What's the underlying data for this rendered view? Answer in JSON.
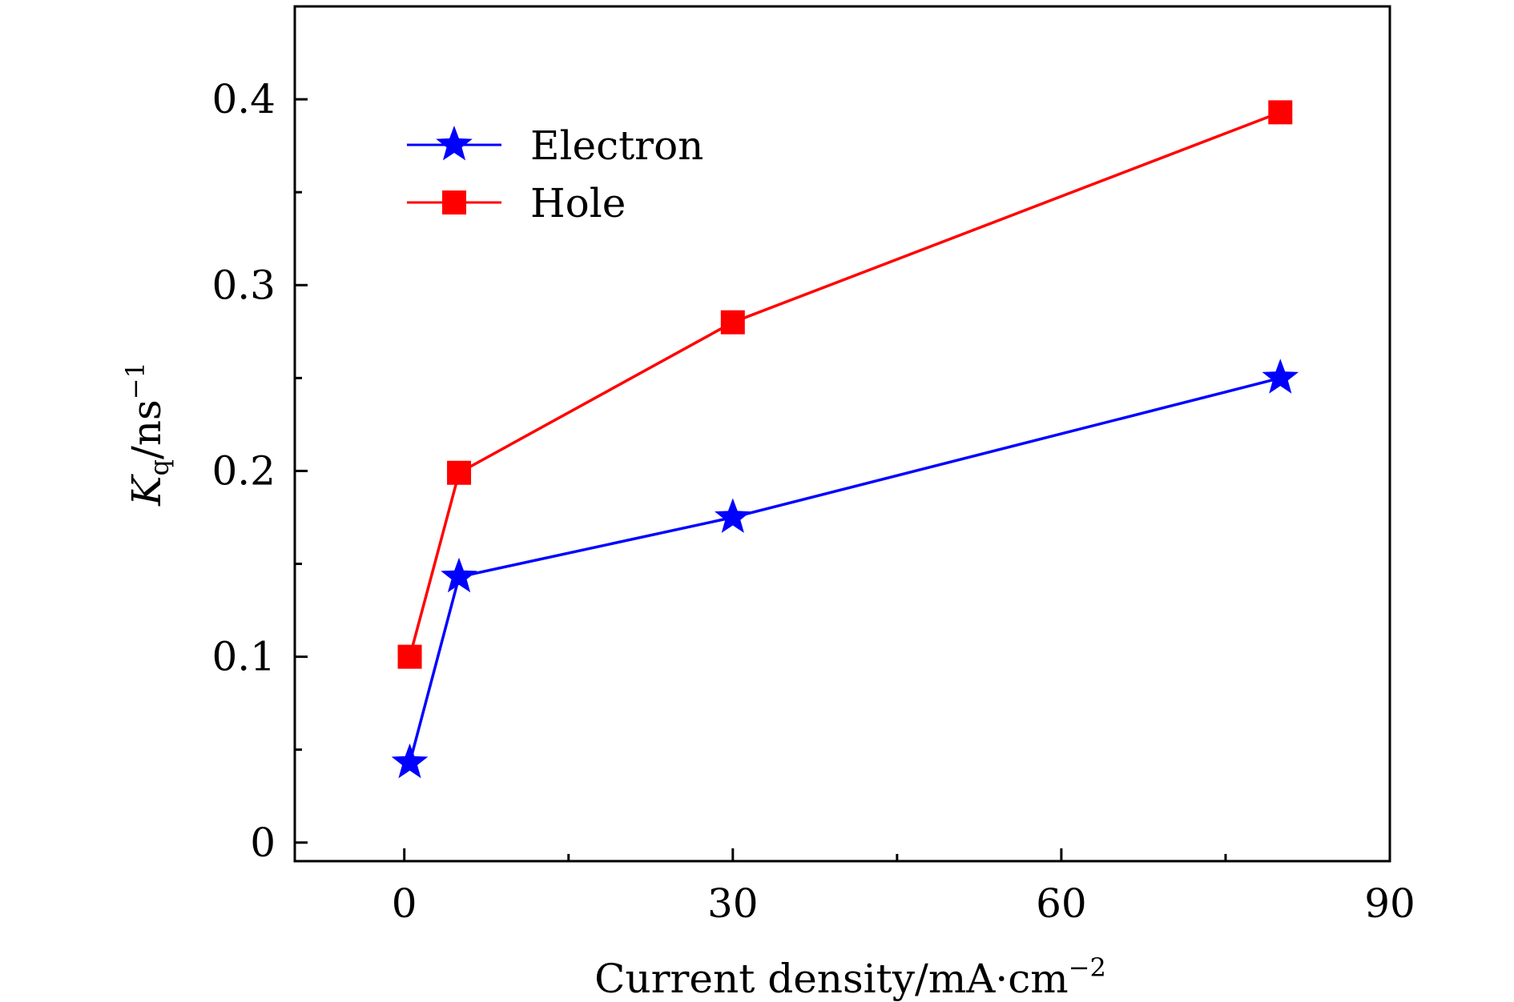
{
  "chart_data": {
    "type": "line",
    "title": "",
    "xlabel": "Current density/mA·cm",
    "xlabel_sup": "−2",
    "ylabel_main": "K",
    "ylabel_sub": "q",
    "ylabel_rest": "/ns",
    "ylabel_sup": "−1",
    "xlim": [
      -10,
      90
    ],
    "ylim": [
      -0.01,
      0.45
    ],
    "xticks": [
      0,
      30,
      60,
      90
    ],
    "xtick_labels": [
      "0",
      "30",
      "60",
      "90"
    ],
    "xminor": [
      15,
      45,
      75
    ],
    "yticks": [
      0,
      0.1,
      0.2,
      0.3,
      0.4
    ],
    "ytick_labels": [
      "0",
      "0.1",
      "0.2",
      "0.3",
      "0.4"
    ],
    "yminor": [
      0.05,
      0.15,
      0.25,
      0.35
    ],
    "legend_position": "top-left",
    "series": [
      {
        "name": "Electron",
        "marker": "star",
        "color": "#0000ff",
        "x": [
          0.5,
          5,
          30,
          80
        ],
        "y": [
          0.043,
          0.143,
          0.175,
          0.25
        ]
      },
      {
        "name": "Hole",
        "marker": "square",
        "color": "#ff0000",
        "x": [
          0.5,
          5,
          30,
          80
        ],
        "y": [
          0.1,
          0.199,
          0.28,
          0.393
        ]
      }
    ]
  }
}
